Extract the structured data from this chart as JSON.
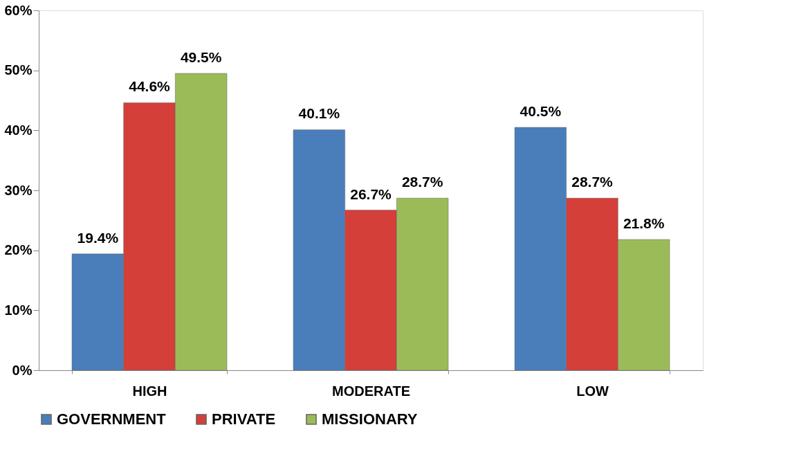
{
  "chart_data": {
    "type": "bar",
    "categories": [
      "HIGH",
      "MODERATE",
      "LOW"
    ],
    "series": [
      {
        "name": "GOVERNMENT",
        "color": "#4a7ebb",
        "values": [
          19.4,
          40.1,
          40.5
        ],
        "value_labels": [
          "19.4%",
          "40.1%",
          "40.5%"
        ]
      },
      {
        "name": "PRIVATE",
        "color": "#d43f3a",
        "values": [
          44.6,
          26.7,
          28.7
        ],
        "value_labels": [
          "44.6%",
          "26.7%",
          "28.7%"
        ]
      },
      {
        "name": "MISSIONARY",
        "color": "#9bbb59",
        "values": [
          49.5,
          28.7,
          21.8
        ],
        "value_labels": [
          "49.5%",
          "28.7%",
          "21.8%"
        ]
      }
    ],
    "ylim": [
      0,
      60
    ],
    "yticks": [
      {
        "value": 0,
        "label": "0%"
      },
      {
        "value": 10,
        "label": "10%"
      },
      {
        "value": 20,
        "label": "20%"
      },
      {
        "value": 30,
        "label": "30%"
      },
      {
        "value": 40,
        "label": "40%"
      },
      {
        "value": 50,
        "label": "50%"
      },
      {
        "value": 60,
        "label": "60%"
      }
    ],
    "grid": false,
    "legend": "bottom"
  }
}
